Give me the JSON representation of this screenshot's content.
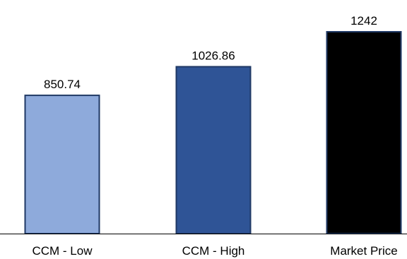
{
  "chart_data": {
    "type": "bar",
    "categories": [
      "CCM - Low",
      "CCM - High",
      "Market Price"
    ],
    "values": [
      850.74,
      1026.86,
      1242
    ],
    "data_labels": [
      "850.74",
      "1026.86",
      "1242"
    ],
    "colors": [
      "#8EAADB",
      "#2F5496",
      "#000000"
    ],
    "bar_border_color": "#1F3864",
    "title": "",
    "xlabel": "",
    "ylabel": "",
    "ylim": [
      0,
      1242
    ],
    "grid": false,
    "legend": "none"
  }
}
